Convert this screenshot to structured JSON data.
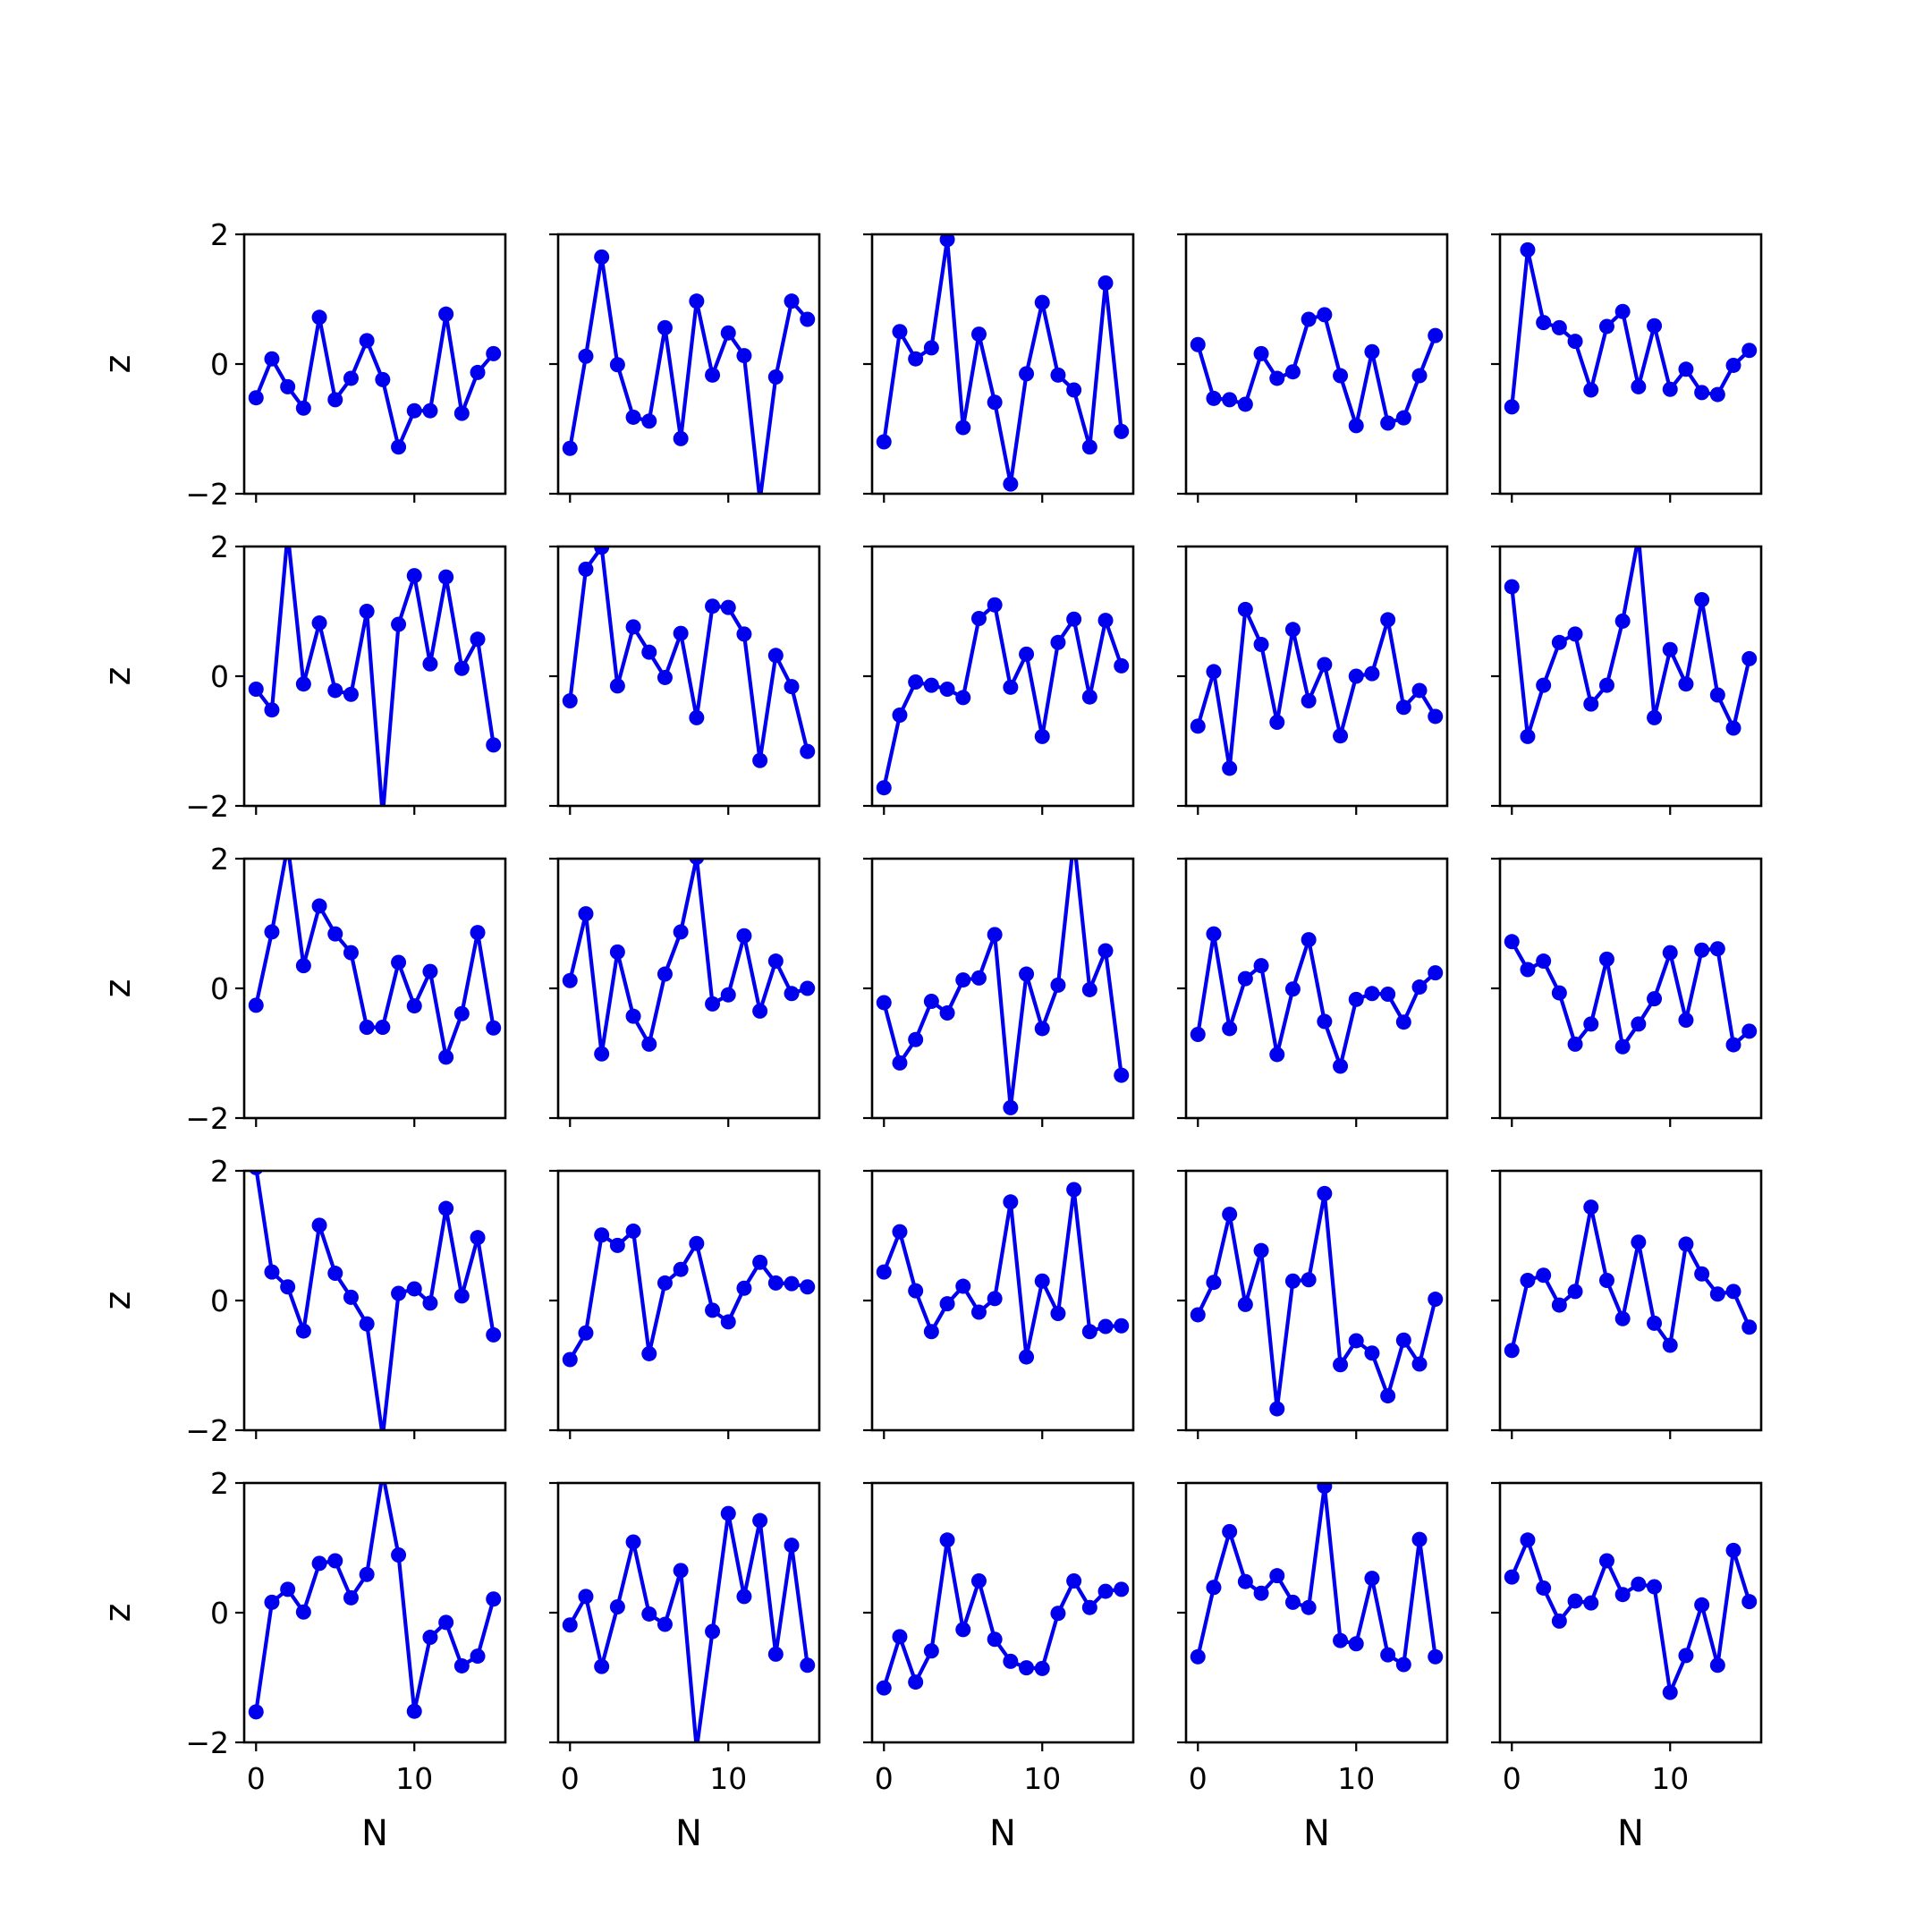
{
  "chart_data": {
    "type": "line",
    "layout": "5x5 grid of subplots with shared axes",
    "xlabel": "N",
    "ylabel": "z",
    "xlim": [
      -0.75,
      15.75
    ],
    "ylim": [
      -2,
      2
    ],
    "xticks": [
      0,
      10
    ],
    "yticks": [
      -2,
      0,
      2
    ],
    "xtick_labels": [
      "0",
      "10"
    ],
    "ytick_labels": [
      "−2",
      "0",
      "2"
    ],
    "x": [
      0,
      1,
      2,
      3,
      4,
      5,
      6,
      7,
      8,
      9,
      10,
      11,
      12,
      13,
      14,
      15
    ],
    "line_color": "#0000ee",
    "marker": "circle",
    "grid": false,
    "panels": [
      {
        "row": 0,
        "col": 0,
        "values": [
          -0.52,
          0.08,
          -0.35,
          -0.68,
          0.72,
          -0.55,
          -0.22,
          0.36,
          -0.24,
          -1.28,
          -0.72,
          -0.72,
          0.77,
          -0.76,
          -0.13,
          0.16
        ]
      },
      {
        "row": 0,
        "col": 1,
        "values": [
          -1.3,
          0.12,
          1.65,
          -0.01,
          -0.82,
          -0.88,
          0.56,
          -1.15,
          0.97,
          -0.17,
          0.48,
          0.13,
          -2.1,
          -0.2,
          0.97,
          0.69
        ]
      },
      {
        "row": 0,
        "col": 2,
        "values": [
          -1.2,
          0.5,
          0.08,
          0.25,
          1.92,
          -0.98,
          0.46,
          -0.59,
          -1.85,
          -0.15,
          0.95,
          -0.17,
          -0.4,
          -1.28,
          1.25,
          -1.04
        ]
      },
      {
        "row": 0,
        "col": 3,
        "values": [
          0.3,
          -0.53,
          -0.55,
          -0.62,
          0.16,
          -0.22,
          -0.12,
          0.69,
          0.76,
          -0.18,
          -0.95,
          0.19,
          -0.91,
          -0.83,
          -0.18,
          0.44
        ]
      },
      {
        "row": 0,
        "col": 4,
        "values": [
          -0.66,
          1.76,
          0.64,
          0.56,
          0.35,
          -0.4,
          0.58,
          0.81,
          -0.35,
          0.59,
          -0.39,
          -0.08,
          -0.44,
          -0.47,
          -0.02,
          0.21
        ]
      },
      {
        "row": 1,
        "col": 0,
        "values": [
          -0.2,
          -0.52,
          2.2,
          -0.12,
          0.82,
          -0.22,
          -0.28,
          1.0,
          -2.15,
          0.8,
          1.55,
          0.19,
          1.53,
          0.12,
          0.57,
          -1.06
        ]
      },
      {
        "row": 1,
        "col": 1,
        "values": [
          -0.38,
          1.65,
          1.99,
          -0.15,
          0.76,
          0.37,
          -0.02,
          0.66,
          -0.64,
          1.08,
          1.06,
          0.65,
          -1.3,
          0.32,
          -0.16,
          -1.16
        ]
      },
      {
        "row": 1,
        "col": 2,
        "values": [
          -1.72,
          -0.6,
          -0.09,
          -0.14,
          -0.2,
          -0.33,
          0.89,
          1.1,
          -0.17,
          0.34,
          -0.93,
          0.52,
          0.88,
          -0.32,
          0.86,
          0.16
        ]
      },
      {
        "row": 1,
        "col": 3,
        "values": [
          -0.77,
          0.07,
          -1.42,
          1.03,
          0.49,
          -0.71,
          0.72,
          -0.38,
          0.18,
          -0.92,
          0.0,
          0.04,
          0.87,
          -0.48,
          -0.22,
          -0.62
        ]
      },
      {
        "row": 1,
        "col": 4,
        "values": [
          1.38,
          -0.93,
          -0.14,
          0.52,
          0.65,
          -0.43,
          -0.14,
          0.85,
          2.15,
          -0.64,
          0.41,
          -0.12,
          1.18,
          -0.29,
          -0.8,
          0.27
        ]
      },
      {
        "row": 2,
        "col": 0,
        "values": [
          -0.26,
          0.87,
          2.2,
          0.35,
          1.27,
          0.84,
          0.55,
          -0.6,
          -0.6,
          0.4,
          -0.27,
          0.26,
          -1.06,
          -0.39,
          0.86,
          -0.61
        ]
      },
      {
        "row": 2,
        "col": 1,
        "values": [
          0.12,
          1.15,
          -1.01,
          0.56,
          -0.43,
          -0.86,
          0.22,
          0.87,
          2.02,
          -0.24,
          -0.1,
          0.81,
          -0.35,
          0.42,
          -0.08,
          0.0
        ]
      },
      {
        "row": 2,
        "col": 2,
        "values": [
          -0.22,
          -1.15,
          -0.79,
          -0.2,
          -0.38,
          0.13,
          0.16,
          0.83,
          -1.84,
          0.22,
          -0.62,
          0.05,
          2.3,
          -0.02,
          0.58,
          -1.34
        ]
      },
      {
        "row": 2,
        "col": 3,
        "values": [
          -0.71,
          0.84,
          -0.62,
          0.15,
          0.35,
          -1.02,
          -0.01,
          0.75,
          -0.51,
          -1.2,
          -0.17,
          -0.08,
          -0.09,
          -0.52,
          0.02,
          0.24
        ]
      },
      {
        "row": 2,
        "col": 4,
        "values": [
          0.72,
          0.29,
          0.42,
          -0.07,
          -0.86,
          -0.55,
          0.45,
          -0.9,
          -0.55,
          -0.16,
          0.55,
          -0.49,
          0.59,
          0.61,
          -0.87,
          -0.66
        ]
      },
      {
        "row": 3,
        "col": 0,
        "values": [
          2.05,
          0.44,
          0.21,
          -0.47,
          1.16,
          0.42,
          0.05,
          -0.36,
          -2.1,
          0.11,
          0.18,
          -0.04,
          1.42,
          0.07,
          0.97,
          -0.53
        ]
      },
      {
        "row": 3,
        "col": 1,
        "values": [
          -0.91,
          -0.5,
          1.01,
          0.85,
          1.07,
          -0.82,
          0.27,
          0.48,
          0.88,
          -0.15,
          -0.33,
          0.19,
          0.59,
          0.27,
          0.26,
          0.21
        ]
      },
      {
        "row": 3,
        "col": 2,
        "values": [
          0.44,
          1.06,
          0.15,
          -0.48,
          -0.05,
          0.22,
          -0.18,
          0.03,
          1.52,
          -0.87,
          0.3,
          -0.2,
          1.71,
          -0.48,
          -0.4,
          -0.39
        ]
      },
      {
        "row": 3,
        "col": 3,
        "values": [
          -0.22,
          0.28,
          1.33,
          -0.06,
          0.77,
          -1.67,
          0.3,
          0.32,
          1.65,
          -0.99,
          -0.62,
          -0.81,
          -1.47,
          -0.61,
          -0.98,
          0.02
        ]
      },
      {
        "row": 3,
        "col": 4,
        "values": [
          -0.77,
          0.31,
          0.39,
          -0.07,
          0.14,
          1.44,
          0.31,
          -0.28,
          0.9,
          -0.35,
          -0.69,
          0.87,
          0.41,
          0.1,
          0.14,
          -0.41
        ]
      },
      {
        "row": 4,
        "col": 0,
        "values": [
          -1.53,
          0.16,
          0.36,
          0.01,
          0.76,
          0.8,
          0.23,
          0.59,
          2.15,
          0.89,
          -1.52,
          -0.38,
          -0.15,
          -0.82,
          -0.67,
          0.21
        ]
      },
      {
        "row": 4,
        "col": 1,
        "values": [
          -0.19,
          0.25,
          -0.83,
          0.09,
          1.09,
          -0.02,
          -0.18,
          0.65,
          -2.1,
          -0.29,
          1.53,
          0.25,
          1.42,
          -0.64,
          1.04,
          -0.81
        ]
      },
      {
        "row": 4,
        "col": 2,
        "values": [
          -1.16,
          -0.37,
          -1.07,
          -0.59,
          1.12,
          -0.26,
          0.49,
          -0.41,
          -0.75,
          -0.85,
          -0.86,
          -0.01,
          0.49,
          0.08,
          0.33,
          0.36
        ]
      },
      {
        "row": 4,
        "col": 3,
        "values": [
          -0.68,
          0.39,
          1.25,
          0.48,
          0.3,
          0.57,
          0.16,
          0.08,
          1.95,
          -0.43,
          -0.48,
          0.53,
          -0.65,
          -0.8,
          1.13,
          -0.68
        ]
      },
      {
        "row": 4,
        "col": 4,
        "values": [
          0.55,
          1.12,
          0.38,
          -0.13,
          0.18,
          0.15,
          0.8,
          0.28,
          0.44,
          0.4,
          -1.23,
          -0.66,
          0.12,
          -0.81,
          0.96,
          0.17
        ]
      }
    ]
  }
}
